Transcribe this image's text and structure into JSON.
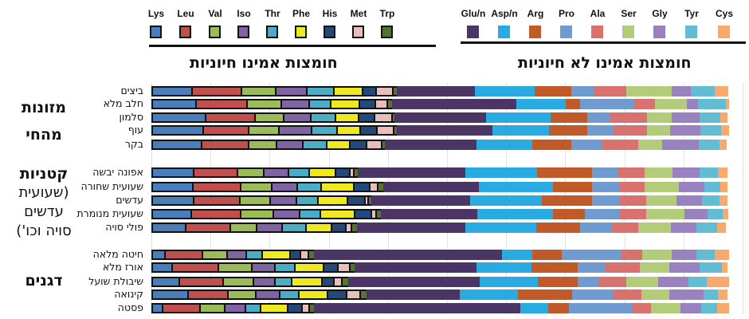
{
  "titles": {
    "essential": "חומצות אמינו חיוניות",
    "nonessential": "חומצות אמינו לא חיוניות"
  },
  "groups": [
    {
      "lines": [
        "מזונות",
        "מהחי"
      ],
      "bold": [
        true,
        true
      ]
    },
    {
      "lines": [
        "קטניות",
        "(שעועית",
        "עדשים",
        "סויה וכו')"
      ],
      "bold": [
        true,
        false,
        false,
        false
      ]
    },
    {
      "lines": [
        "דגנים"
      ],
      "bold": [
        true
      ]
    }
  ],
  "chart_data": {
    "type": "bar",
    "orientation": "horizontal",
    "stacked": true,
    "units": "% of total amino acids (estimated)",
    "xlim": [
      0,
      100
    ],
    "grid": true,
    "legend_placement": "top",
    "categories": [
      "Lys",
      "Leu",
      "Val",
      "Iso",
      "Thr",
      "Phe",
      "His",
      "Met",
      "Trp",
      "Glu/n",
      "Asp/n",
      "Arg",
      "Pro",
      "Ala",
      "Ser",
      "Gly",
      "Tyr",
      "Cys"
    ],
    "essential_count": 9,
    "colors": [
      "#4a7ebb",
      "#c0504d",
      "#9bbb59",
      "#8064a2",
      "#4bacc6",
      "#eeea22",
      "#23497a",
      "#e8bdbc",
      "#56722f",
      "#4b3565",
      "#29abe2",
      "#c05a28",
      "#6f9bd1",
      "#d8726f",
      "#b3cc7a",
      "#9a82c1",
      "#62bcd4",
      "#f8a96b"
    ],
    "rows": [
      {
        "group": 0,
        "food": "ביצים",
        "values": [
          7.0,
          8.6,
          6.1,
          5.5,
          4.9,
          5.1,
          2.6,
          3.0,
          1.1,
          13.2,
          10.1,
          6.2,
          3.9,
          5.5,
          7.7,
          3.2,
          4.0,
          2.4
        ]
      },
      {
        "group": 0,
        "food": "חלב מלא",
        "values": [
          7.7,
          8.9,
          6.1,
          4.9,
          4.0,
          5.0,
          3.0,
          2.3,
          1.2,
          21.0,
          8.4,
          2.4,
          9.2,
          3.5,
          5.4,
          1.9,
          4.7,
          0.5
        ]
      },
      {
        "group": 0,
        "food": "סלמון",
        "values": [
          9.3,
          8.6,
          5.2,
          4.8,
          4.4,
          4.2,
          3.0,
          3.2,
          0.9,
          15.5,
          10.9,
          6.1,
          3.8,
          6.3,
          4.2,
          4.7,
          3.6,
          1.2
        ]
      },
      {
        "group": 0,
        "food": "עוף",
        "values": [
          8.9,
          8.0,
          5.3,
          5.8,
          4.6,
          4.2,
          3.1,
          3.1,
          0.9,
          16.2,
          9.6,
          6.5,
          4.4,
          5.7,
          3.9,
          5.1,
          3.6,
          1.3
        ]
      },
      {
        "group": 0,
        "food": "בקר",
        "values": [
          8.6,
          8.2,
          5.1,
          4.7,
          4.3,
          4.2,
          3.1,
          2.8,
          0.9,
          15.5,
          9.4,
          6.7,
          5.1,
          6.2,
          4.0,
          6.2,
          3.5,
          1.3
        ]
      },
      {
        "group": 1,
        "food": "אפונה יבשה",
        "values": [
          7.3,
          7.7,
          4.7,
          4.4,
          3.8,
          4.7,
          2.7,
          0.9,
          1.2,
          18.1,
          12.1,
          9.4,
          4.3,
          4.6,
          4.7,
          4.6,
          3.1,
          1.6
        ]
      },
      {
        "group": 1,
        "food": "שעועית שחורה",
        "values": [
          7.1,
          8.4,
          5.5,
          4.6,
          4.4,
          5.7,
          3.0,
          1.6,
          1.3,
          16.2,
          12.5,
          6.6,
          4.7,
          4.3,
          5.7,
          4.3,
          2.8,
          1.2
        ]
      },
      {
        "group": 1,
        "food": "עדשים",
        "values": [
          7.3,
          8.0,
          5.5,
          4.7,
          3.9,
          5.3,
          3.2,
          0.8,
          0.9,
          16.8,
          12.1,
          8.4,
          4.7,
          4.6,
          5.0,
          4.4,
          3.0,
          1.3
        ]
      },
      {
        "group": 1,
        "food": "שעועית מנומרת",
        "values": [
          6.9,
          8.6,
          5.8,
          4.7,
          3.8,
          6.1,
          3.0,
          1.1,
          1.2,
          16.3,
          12.8,
          5.5,
          5.9,
          4.4,
          6.5,
          3.9,
          2.6,
          0.9
        ]
      },
      {
        "group": 1,
        "food": "פולי סויה",
        "values": [
          5.9,
          7.8,
          4.7,
          4.6,
          4.3,
          4.7,
          2.7,
          1.2,
          1.3,
          18.3,
          12.0,
          7.4,
          5.5,
          4.4,
          5.5,
          4.3,
          3.6,
          1.5
        ]
      },
      {
        "group": 2,
        "food": "חיטה מלאה",
        "values": [
          2.4,
          6.7,
          4.4,
          3.5,
          3.0,
          5.0,
          2.0,
          1.6,
          1.3,
          31.9,
          5.0,
          5.0,
          10.1,
          3.5,
          5.0,
          4.2,
          3.1,
          2.4
        ]
      },
      {
        "group": 2,
        "food": "אורז מלא",
        "values": [
          3.6,
          8.2,
          5.9,
          4.2,
          3.6,
          5.1,
          2.7,
          2.3,
          1.2,
          20.6,
          9.3,
          7.8,
          4.7,
          5.8,
          5.1,
          5.0,
          3.9,
          0.9
        ]
      },
      {
        "group": 2,
        "food": "שיבולת שועל",
        "values": [
          4.8,
          7.7,
          5.5,
          3.9,
          3.1,
          5.4,
          2.2,
          1.6,
          1.5,
          22.3,
          9.8,
          6.7,
          3.6,
          4.7,
          5.4,
          5.1,
          3.1,
          3.8
        ]
      },
      {
        "group": 2,
        "food": "קינואה",
        "values": [
          6.3,
          7.0,
          5.0,
          4.3,
          3.6,
          5.1,
          3.5,
          2.6,
          1.5,
          15.7,
          9.8,
          9.2,
          6.9,
          4.8,
          4.8,
          5.8,
          2.4,
          1.6
        ]
      },
      {
        "group": 2,
        "food": "פסטה",
        "values": [
          2.0,
          6.7,
          4.4,
          3.8,
          2.8,
          4.9,
          2.6,
          1.5,
          1.3,
          34.9,
          4.7,
          3.5,
          10.8,
          3.0,
          5.0,
          3.5,
          2.7,
          2.0
        ]
      }
    ]
  }
}
